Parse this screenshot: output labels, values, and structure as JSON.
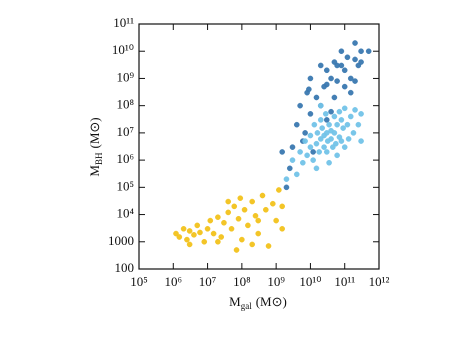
{
  "chart_data": {
    "type": "scatter",
    "xlabel": {
      "main": "M",
      "sub": "gal",
      "unit": "(M⊙)"
    },
    "ylabel": {
      "main": "M",
      "sub": "BH",
      "unit": "(M⊙)"
    },
    "log_x": true,
    "log_y": true,
    "xlim": [
      100000,
      1000000000000
    ],
    "ylim": [
      100,
      100000000000
    ],
    "xticks": [
      {
        "value": 100000,
        "label": "10⁵"
      },
      {
        "value": 1000000,
        "label": "10⁶"
      },
      {
        "value": 10000000,
        "label": "10⁷"
      },
      {
        "value": 100000000,
        "label": "10⁸"
      },
      {
        "value": 1000000000,
        "label": "10⁹"
      },
      {
        "value": 10000000000,
        "label": "10¹⁰"
      },
      {
        "value": 100000000000,
        "label": "10¹¹"
      },
      {
        "value": 1000000000000,
        "label": "10¹²"
      }
    ],
    "yticks": [
      100,
      1000,
      {
        "value": 10000,
        "label": "10⁴"
      },
      {
        "value": 100000,
        "label": "10⁵"
      },
      {
        "value": 1000000,
        "label": "10⁶"
      },
      {
        "value": 10000000,
        "label": "10⁷"
      },
      {
        "value": 100000000,
        "label": "10⁸"
      },
      {
        "value": 1000000000,
        "label": "10⁹"
      },
      {
        "value": 10000000000,
        "label": "10¹⁰"
      },
      {
        "value": 100000000000,
        "label": "10¹¹"
      }
    ],
    "series": [
      {
        "color": "#f2c21b",
        "x": [
          1200000.0,
          1500000.0,
          2000000.0,
          2500000.0,
          3000000.0,
          4000000.0,
          5000000.0,
          6000000.0,
          8000000.0,
          10000000.0,
          12000000.0,
          15000000.0,
          20000000.0,
          25000000.0,
          30000000.0,
          40000000.0,
          50000000.0,
          60000000.0,
          80000000.0,
          100000000.0,
          120000000.0,
          150000000.0,
          200000000.0,
          250000000.0,
          300000000.0,
          400000000.0,
          500000000.0,
          600000000.0,
          800000000.0,
          1000000000.0,
          1200000000.0,
          70000000.0,
          3000000.0,
          20000000.0,
          40000000.0,
          90000000.0,
          300000000.0,
          1500000000.0,
          1500000000.0,
          200000000.0
        ],
        "values": [
          2000,
          1500,
          3000,
          1200,
          2500,
          1800,
          4000,
          2200,
          1000,
          3000,
          6000,
          2000,
          8000,
          1500,
          5000,
          12000,
          3000,
          20000,
          7000,
          1200,
          15000,
          4000,
          30000,
          9000,
          2000,
          50000,
          15000,
          700,
          25000,
          6000,
          80000,
          500,
          800,
          1000,
          30000,
          40000,
          6000,
          20000,
          3000,
          800
        ]
      },
      {
        "color": "#3a78b0",
        "x": [
          2000000000.0,
          3000000000.0,
          4000000000.0,
          5000000000.0,
          6000000000.0,
          8000000000.0,
          10000000000.0,
          10000000000.0,
          15000000000.0,
          20000000000.0,
          20000000000.0,
          25000000000.0,
          30000000000.0,
          30000000000.0,
          40000000000.0,
          50000000000.0,
          50000000000.0,
          60000000000.0,
          80000000000.0,
          80000000000.0,
          100000000000.0,
          100000000000.0,
          120000000000.0,
          150000000000.0,
          200000000000.0,
          200000000000.0,
          250000000000.0,
          300000000000.0,
          300000000000.0,
          200000000000.0,
          40000000000.0,
          7000000000.0,
          1500000000.0,
          2500000000.0,
          12000000000.0,
          150000000000.0,
          60000000000.0,
          30000000000.0,
          500000000000.0,
          9000000000.0
        ],
        "values": [
          100000.0,
          3000000.0,
          20000000.0,
          100000000.0,
          5000000.0,
          300000000.0,
          1000000000.0,
          50000000.0,
          200000000.0,
          3000000000.0,
          100000000.0,
          500000000.0,
          2000000000.0,
          30000000.0,
          1000000000.0,
          4000000000.0,
          200000000.0,
          800000000.0,
          10000000000.0,
          3000000000.0,
          2000000000.0,
          500000000.0,
          6000000000.0,
          1000000000.0,
          5000000000.0,
          20000000000.0,
          3000000000.0,
          10000000000.0,
          4000000000.0,
          800000000.0,
          60000000.0,
          10000000.0,
          2000000.0,
          500000.0,
          2000000.0,
          300000000.0,
          3000000000.0,
          600000000.0,
          10000000000.0,
          400000000.0
        ]
      },
      {
        "color": "#72c3e8",
        "x": [
          2000000000.0,
          3000000000.0,
          4000000000.0,
          5000000000.0,
          6000000000.0,
          7000000000.0,
          8000000000.0,
          10000000000.0,
          10000000000.0,
          12000000000.0,
          13000000000.0,
          15000000000.0,
          16000000000.0,
          18000000000.0,
          20000000000.0,
          20000000000.0,
          22000000000.0,
          25000000000.0,
          25000000000.0,
          28000000000.0,
          30000000000.0,
          30000000000.0,
          32000000000.0,
          35000000000.0,
          35000000000.0,
          40000000000.0,
          40000000000.0,
          45000000000.0,
          50000000000.0,
          50000000000.0,
          55000000000.0,
          60000000000.0,
          60000000000.0,
          70000000000.0,
          70000000000.0,
          80000000000.0,
          80000000000.0,
          90000000000.0,
          100000000000.0,
          100000000000.0,
          120000000000.0,
          130000000000.0,
          150000000000.0,
          180000000000.0,
          200000000000.0,
          250000000000.0,
          300000000000.0,
          300000000000.0,
          15000000000.0,
          20000000000.0
        ],
        "values": [
          200000.0,
          1000000.0,
          300000.0,
          2000000.0,
          800000.0,
          5000000.0,
          1500000.0,
          3000000.0,
          8000000.0,
          1000000.0,
          20000000.0,
          4000000.0,
          10000000.0,
          2000000.0,
          6000000.0,
          30000000.0,
          15000000.0,
          3000000.0,
          8000000.0,
          50000000.0,
          10000000.0,
          2000000.0,
          5000000.0,
          20000000.0,
          800000.0,
          6000000.0,
          12000000.0,
          3000000.0,
          40000000.0,
          10000000.0,
          4000000.0,
          20000000.0,
          1500000.0,
          7000000.0,
          60000000.0,
          30000000.0,
          5000000.0,
          15000000.0,
          80000000.0,
          3000000.0,
          20000000.0,
          6000000.0,
          40000000.0,
          10000000.0,
          70000000.0,
          20000000.0,
          5000000.0,
          50000000.0,
          500000.0,
          100000000.0
        ]
      }
    ]
  }
}
